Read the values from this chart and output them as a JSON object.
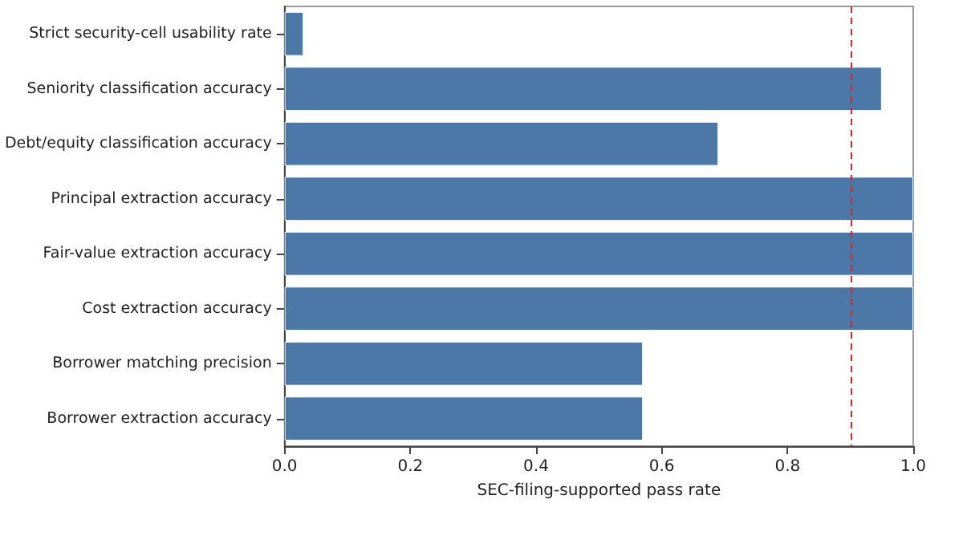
{
  "chart_data": {
    "type": "bar",
    "orientation": "horizontal",
    "xlabel": "SEC-filing-supported pass rate",
    "categories": [
      "Strict security-cell usability rate",
      "Seniority classification accuracy",
      "Debt/equity classification accuracy",
      "Principal extraction accuracy",
      "Fair-value extraction accuracy",
      "Cost extraction accuracy",
      "Borrower matching precision",
      "Borrower extraction accuracy"
    ],
    "values": [
      0.03,
      0.95,
      0.69,
      1.0,
      1.0,
      1.0,
      0.57,
      0.57
    ],
    "color": "#4c78a8",
    "xlim": [
      0,
      1
    ],
    "xticks": [
      {
        "value": 0,
        "label": "0.0"
      },
      {
        "value": 0.2,
        "label": "0.2"
      },
      {
        "value": 0.4,
        "label": "0.4"
      },
      {
        "value": 0.6,
        "label": "0.6"
      },
      {
        "value": 0.8,
        "label": "0.8"
      },
      {
        "value": 1,
        "label": "1.0"
      }
    ],
    "ref_lines": [
      {
        "axis": "x",
        "value": 0.9,
        "color": "#d62728",
        "line_style": "dashed"
      }
    ],
    "grid": false
  }
}
